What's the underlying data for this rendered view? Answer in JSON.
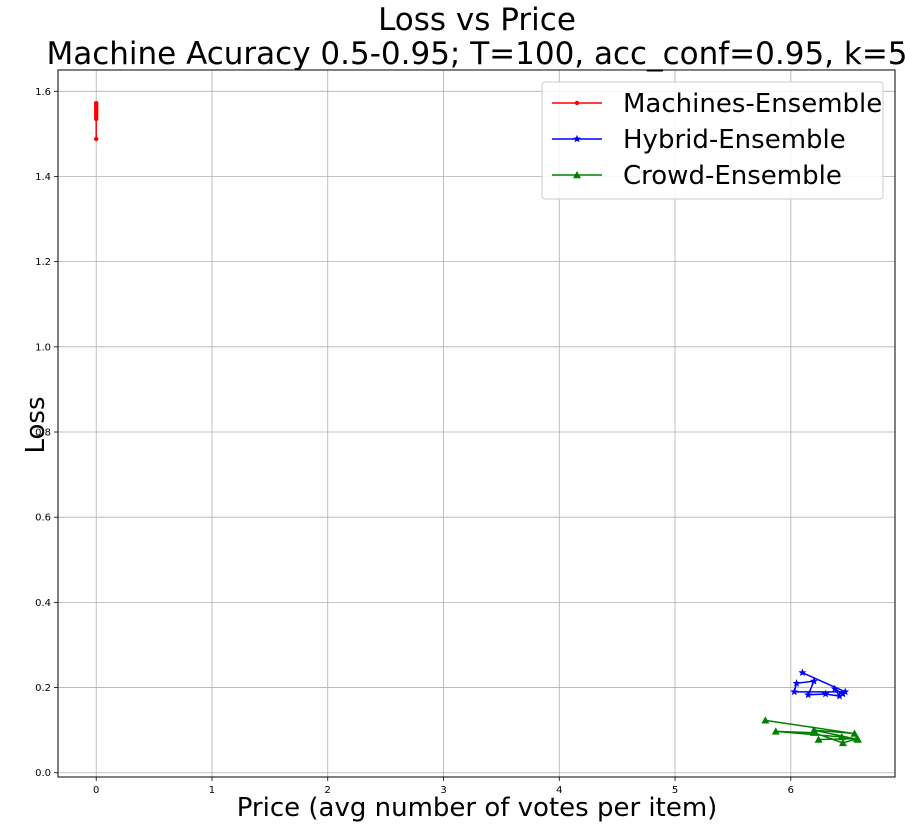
{
  "chart_data": {
    "type": "line",
    "title": "Loss vs Price",
    "subtitle": "Machine Acuracy 0.5-0.95; T=100, acc_conf=0.95, k=5",
    "xlabel": "Price (avg number of votes per item)",
    "ylabel": "Loss",
    "xlim": [
      -0.33,
      6.9
    ],
    "ylim": [
      -0.01,
      1.65
    ],
    "xticks": [
      0,
      1,
      2,
      3,
      4,
      5,
      6
    ],
    "yticks": [
      0.0,
      0.2,
      0.4,
      0.6,
      0.8,
      1.0,
      1.2,
      1.4,
      1.6
    ],
    "xtick_labels": [
      "0",
      "1",
      "2",
      "3",
      "4",
      "5",
      "6"
    ],
    "ytick_labels": [
      "0.0",
      "0.2",
      "0.4",
      "0.6",
      "0.8",
      "1.0",
      "1.2",
      "1.4",
      "1.6"
    ],
    "grid": true,
    "legend_position": "top-right",
    "series": [
      {
        "name": "Machines-Ensemble",
        "color": "#ff0000",
        "marker": "point",
        "x": [
          0,
          0,
          0,
          0,
          0,
          0,
          0,
          0,
          0,
          0
        ],
        "y": [
          1.572,
          1.488,
          1.56,
          1.55,
          1.54,
          1.565,
          1.535,
          1.555,
          1.545,
          1.57
        ]
      },
      {
        "name": "Hybrid-Ensemble",
        "color": "#0000ff",
        "marker": "star",
        "x": [
          6.1,
          6.47,
          6.03,
          6.05,
          6.2,
          6.15,
          6.3,
          6.42,
          6.38,
          6.45
        ],
        "y": [
          0.235,
          0.19,
          0.19,
          0.21,
          0.215,
          0.183,
          0.185,
          0.18,
          0.197,
          0.185
        ]
      },
      {
        "name": "Crowd-Ensemble",
        "color": "#008000",
        "marker": "triangle",
        "x": [
          5.78,
          6.55,
          6.2,
          6.58,
          6.44,
          5.87,
          6.2,
          6.45,
          6.57,
          6.24
        ],
        "y": [
          0.123,
          0.092,
          0.1,
          0.078,
          0.084,
          0.097,
          0.094,
          0.07,
          0.08,
          0.078
        ]
      }
    ]
  }
}
